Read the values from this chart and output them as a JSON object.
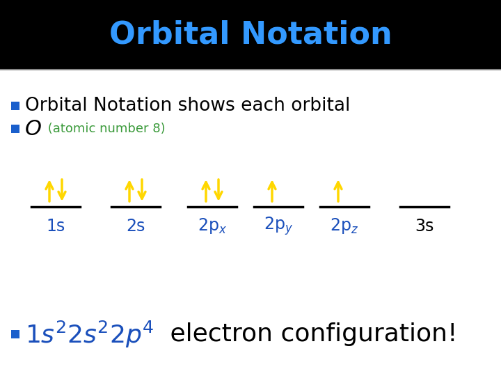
{
  "title": "Orbital Notation",
  "title_color": "#3399FF",
  "title_bg": "#000000",
  "bg_color": "#FFFFFF",
  "bullet_square_color": "#1a5fcc",
  "line1": "Orbital Notation shows each orbital",
  "line1_color": "#000000",
  "line2_main": "O",
  "line2_sub": " (atomic number 8)",
  "line2_main_color": "#000000",
  "line2_sub_color": "#3a9a3a",
  "arrow_color": "#FFD700",
  "orbital_line_color": "#000000",
  "label_color": "#1a4fbb",
  "label_3s_color": "#000000",
  "arrows_up": [
    true,
    true,
    true,
    true,
    true,
    false
  ],
  "arrows_down": [
    true,
    true,
    true,
    false,
    false,
    false
  ],
  "bottom_formula_color": "#1a4fbb",
  "bottom_text_color": "#000000",
  "separator_color": "#888888"
}
